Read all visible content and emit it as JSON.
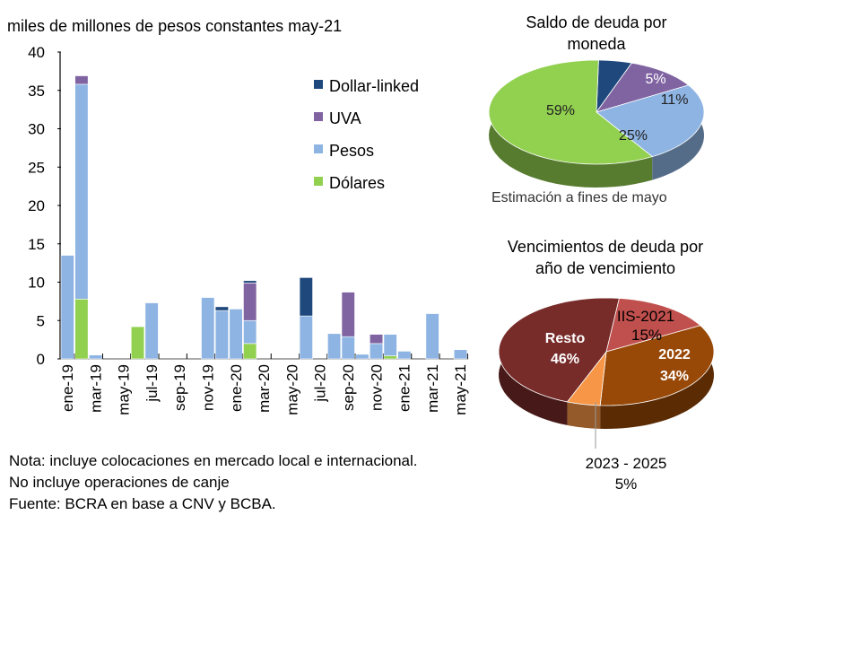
{
  "chart_data": [
    {
      "type": "bar",
      "stacked": true,
      "ylabel": "miles de millones de pesos constantes may-21",
      "ylim": [
        0,
        40
      ],
      "yticks": [
        0,
        5,
        10,
        15,
        20,
        25,
        30,
        35,
        40
      ],
      "categories": [
        "ene-19",
        "feb-19",
        "mar-19",
        "abr-19",
        "may-19",
        "jun-19",
        "jul-19",
        "ago-19",
        "sep-19",
        "oct-19",
        "nov-19",
        "dic-19",
        "ene-20",
        "feb-20",
        "mar-20",
        "abr-20",
        "may-20",
        "jun-20",
        "jul-20",
        "ago-20",
        "sep-20",
        "oct-20",
        "nov-20",
        "dic-20",
        "ene-21",
        "feb-21",
        "mar-21",
        "abr-21",
        "may-21"
      ],
      "xtick_labels": [
        "ene-19",
        "mar-19",
        "may-19",
        "jul-19",
        "sep-19",
        "nov-19",
        "ene-20",
        "mar-20",
        "may-20",
        "jul-20",
        "sep-20",
        "nov-20",
        "ene-21",
        "mar-21",
        "may-21"
      ],
      "legend": "top-right",
      "series": [
        {
          "name": "Dólares",
          "color": "#92d050",
          "values": [
            0,
            7.8,
            0,
            0,
            0,
            4.2,
            0,
            0,
            0,
            0,
            0,
            0,
            0,
            2.0,
            0,
            0,
            0,
            0,
            0,
            0,
            0,
            0,
            0,
            0.4,
            0,
            0,
            0,
            0,
            0
          ]
        },
        {
          "name": "Pesos",
          "color": "#8eb4e3",
          "values": [
            13.5,
            28.0,
            0.5,
            0,
            0,
            0,
            7.3,
            0,
            0,
            0,
            8.0,
            6.3,
            6.5,
            3.0,
            0,
            0,
            0,
            5.6,
            0,
            3.3,
            2.9,
            0.6,
            2.0,
            2.8,
            1.0,
            0,
            5.9,
            0,
            1.2
          ]
        },
        {
          "name": "UVA",
          "color": "#8064a2",
          "values": [
            0,
            1.1,
            0,
            0,
            0,
            0,
            0,
            0,
            0,
            0,
            0,
            0,
            0,
            4.9,
            0,
            0,
            0,
            0,
            0,
            0,
            5.8,
            0,
            1.2,
            0,
            0,
            0,
            0,
            0,
            0
          ]
        },
        {
          "name": "Dollar-linked",
          "color": "#1f497d",
          "values": [
            0,
            0,
            0,
            0,
            0,
            0,
            0,
            0,
            0,
            0,
            0,
            0.5,
            0,
            0.3,
            0,
            0,
            0,
            5.0,
            0,
            0,
            0,
            0,
            0,
            0,
            0,
            0,
            0,
            0,
            0
          ]
        }
      ]
    },
    {
      "type": "pie",
      "title": "Saldo de deuda por moneda",
      "subtitle": "Estimación a fines de mayo",
      "slices": [
        {
          "name": "Dollar-linked",
          "value": 5,
          "label": "5%",
          "color": "#1f497d"
        },
        {
          "name": "UVA",
          "value": 11,
          "label": "11%",
          "color": "#8064a2"
        },
        {
          "name": "Pesos",
          "value": 25,
          "label": "25%",
          "color": "#8eb4e3"
        },
        {
          "name": "Dólares",
          "value": 59,
          "label": "59%",
          "color": "#92d050"
        }
      ]
    },
    {
      "type": "pie",
      "title": "Vencimientos de deuda por año de vencimiento",
      "slices": [
        {
          "name": "IIS-2021",
          "value": 15,
          "label": "15%",
          "color": "#c0504d"
        },
        {
          "name": "2022",
          "value": 34,
          "label": "34%",
          "color": "#984807"
        },
        {
          "name": "2023 - 2025",
          "value": 5,
          "label": "5%",
          "color": "#f79646"
        },
        {
          "name": "Resto",
          "value": 46,
          "label": "46%",
          "color": "#772c2a"
        }
      ]
    }
  ],
  "notes": [
    "Nota: incluye colocaciones en mercado local e internacional.",
    "No incluye operaciones de canje",
    "Fuente: BCRA en base a CNV y BCBA."
  ],
  "pie1_title_lines": [
    "Saldo de deuda por",
    "moneda"
  ],
  "pie2_title_lines": [
    "Vencimientos de deuda por",
    "año de vencimiento"
  ]
}
